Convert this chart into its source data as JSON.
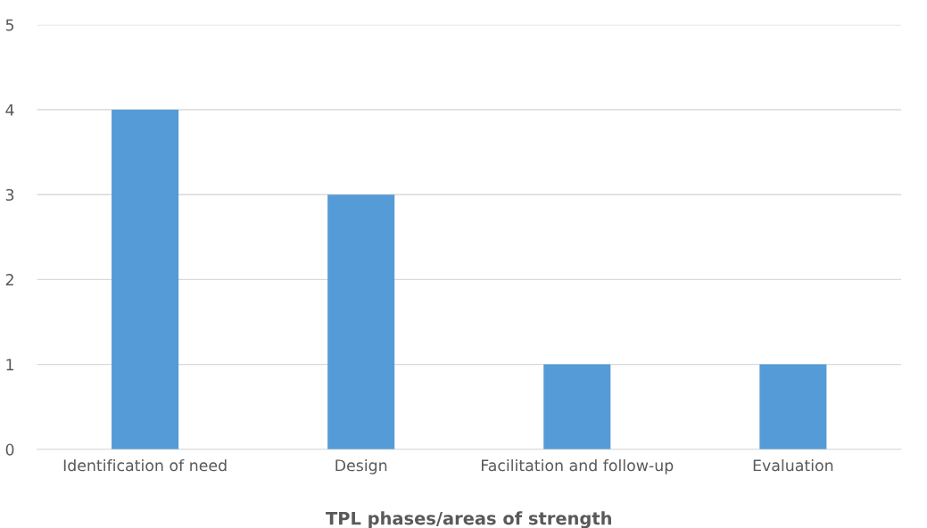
{
  "chart_data": {
    "type": "bar",
    "xlabel": "TPL phases/areas of strength",
    "categories": [
      "Identification of need",
      "Design",
      "Facilitation and follow-up",
      "Evaluation"
    ],
    "values": [
      4,
      3,
      1,
      1
    ],
    "color": "#559bd7",
    "ylim": [
      0,
      5
    ],
    "yticks": [
      0,
      1,
      2,
      3,
      4,
      5
    ],
    "grid": "y"
  }
}
